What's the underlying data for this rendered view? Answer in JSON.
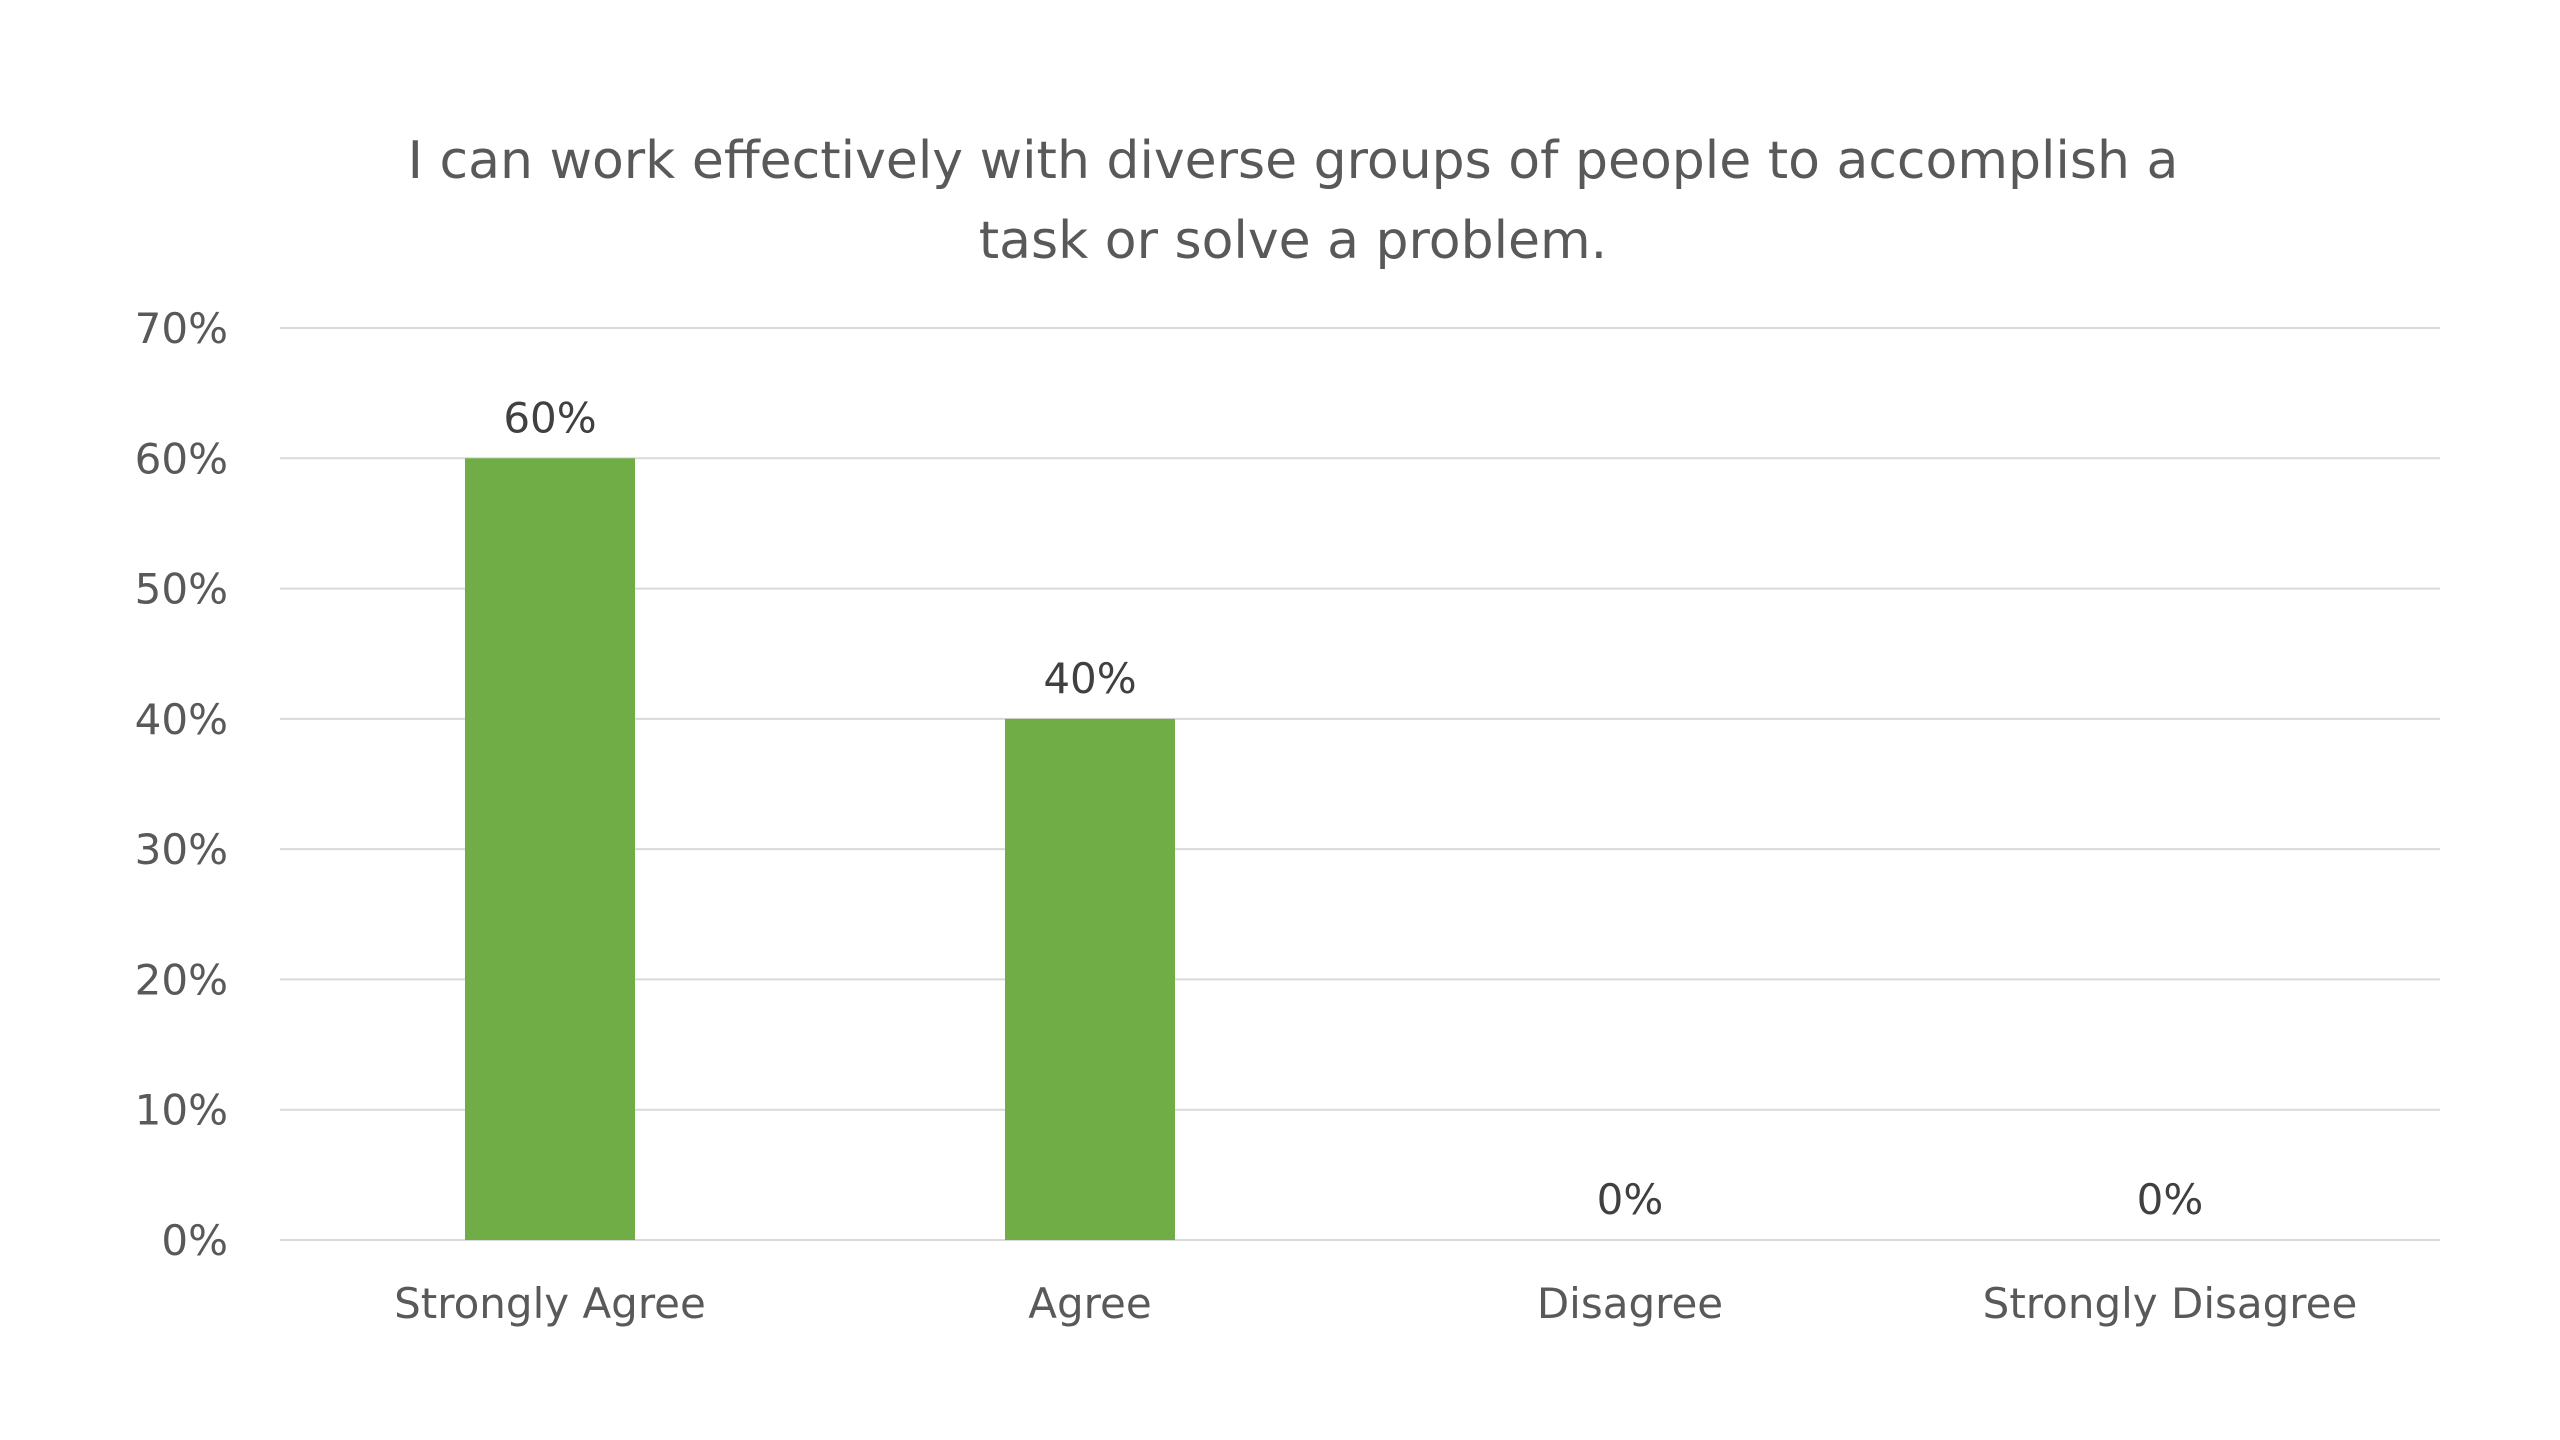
{
  "chart_data": {
    "type": "bar",
    "title_lines": [
      "I can work effectively with diverse groups of people to accomplish a",
      "task or solve a problem."
    ],
    "categories": [
      "Strongly Agree",
      "Agree",
      "Disagree",
      "Strongly Disagree"
    ],
    "values": [
      60,
      40,
      0,
      0
    ],
    "data_labels": [
      "60%",
      "40%",
      "0%",
      "0%"
    ],
    "y_ticks": [
      0,
      10,
      20,
      30,
      40,
      50,
      60,
      70
    ],
    "y_tick_labels": [
      "0%",
      "10%",
      "20%",
      "30%",
      "40%",
      "50%",
      "60%",
      "70%"
    ],
    "ylim": [
      0,
      70
    ],
    "grid": true,
    "legend": "none",
    "bar_color": "#70AD47"
  }
}
